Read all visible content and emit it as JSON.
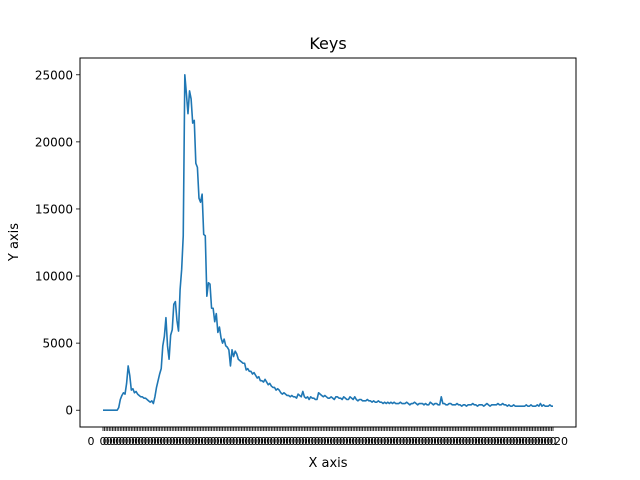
{
  "chart_data": {
    "type": "line",
    "title": "Keys",
    "xlabel": "X axis",
    "ylabel": "Y axis",
    "ylim": [
      -1250,
      26250
    ],
    "y_ticks": [
      0,
      5000,
      10000,
      15000,
      20000,
      25000
    ],
    "y_tick_labels": [
      "0",
      "5000",
      "10000",
      "15000",
      "20000",
      "25000"
    ],
    "grid": false,
    "legend": "none",
    "x_tick_labels_note": "categorical x axis with overlapping tick labels",
    "x_first_label": "0",
    "x_last_label": "20",
    "series": [
      {
        "color": "#1f77b4",
        "values": [
          0,
          0,
          0,
          0,
          0,
          0,
          0,
          0,
          0,
          0,
          200,
          800,
          1100,
          1300,
          1200,
          2000,
          3300,
          2600,
          1500,
          1600,
          1300,
          1400,
          1200,
          1100,
          1000,
          1000,
          900,
          900,
          800,
          700,
          600,
          700,
          500,
          1000,
          1700,
          2200,
          2700,
          3100,
          4800,
          5500,
          6900,
          4800,
          3800,
          5600,
          6000,
          7900,
          8100,
          6700,
          5900,
          9000,
          10500,
          13000,
          25000,
          23600,
          22100,
          23800,
          23200,
          21400,
          21600,
          18400,
          18100,
          15800,
          15500,
          16100,
          13100,
          13000,
          8500,
          9500,
          9400,
          7600,
          7600,
          6600,
          7200,
          5800,
          6200,
          5400,
          5000,
          5300,
          4800,
          4700,
          4500,
          3300,
          4500,
          4000,
          4400,
          4200,
          3800,
          3700,
          3600,
          3500,
          3500,
          3000,
          3100,
          2900,
          2900,
          2700,
          2800,
          2600,
          2400,
          2500,
          2200,
          2200,
          2100,
          2300,
          2100,
          1900,
          2000,
          1800,
          1700,
          1700,
          1500,
          1600,
          1500,
          1300,
          1200,
          1300,
          1200,
          1100,
          1100,
          1000,
          1100,
          1000,
          1000,
          900,
          1200,
          1100,
          1000,
          1400,
          1000,
          900,
          1000,
          800,
          1000,
          900,
          900,
          800,
          800,
          1300,
          1200,
          1100,
          1000,
          1100,
          1000,
          900,
          900,
          1000,
          900,
          800,
          1000,
          1000,
          900,
          900,
          800,
          1000,
          900,
          800,
          800,
          1000,
          900,
          800,
          1000,
          800,
          700,
          800,
          800,
          700,
          700,
          700,
          800,
          700,
          700,
          600,
          700,
          600,
          600,
          700,
          600,
          600,
          500,
          600,
          500,
          600,
          500,
          600,
          500,
          600,
          500,
          500,
          500,
          600,
          500,
          500,
          500,
          600,
          500,
          400,
          500,
          500,
          600,
          500,
          400,
          500,
          500,
          500,
          400,
          500,
          400,
          400,
          600,
          500,
          400,
          500,
          500,
          400,
          400,
          1000,
          500,
          500,
          400,
          400,
          500,
          500,
          400,
          400,
          400,
          500,
          400,
          400,
          300,
          400,
          400,
          300,
          400,
          400,
          400,
          500,
          400,
          400,
          300,
          400,
          400,
          400,
          300,
          400,
          500,
          400,
          300,
          400,
          400,
          400,
          400,
          500,
          400,
          400,
          500,
          400,
          400,
          300,
          400,
          300,
          300,
          400,
          300,
          300,
          300,
          300,
          300,
          300,
          300,
          400,
          300,
          300,
          400,
          300,
          300,
          300,
          400,
          300,
          500,
          300,
          400,
          300,
          300,
          300,
          400,
          300,
          300
        ]
      }
    ]
  }
}
